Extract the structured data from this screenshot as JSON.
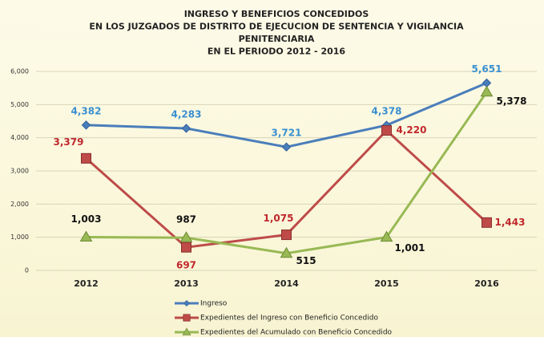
{
  "chart_data": {
    "type": "line",
    "title": [
      "INGRESO Y BENEFICIOS CONCEDIDOS",
      "EN LOS JUZGADOS DE DISTRITO DE EJECUCION DE SENTENCIA Y VIGILANCIA",
      "PENITENCIARIA",
      "EN EL PERIODO 2012 - 2016"
    ],
    "categories": [
      "2012",
      "2013",
      "2014",
      "2015",
      "2016"
    ],
    "series": [
      {
        "name": "Ingreso",
        "color": "#4a7ebb",
        "label_color": "#3a8fd0",
        "marker": "diamond",
        "values": [
          4382,
          4283,
          3721,
          4378,
          5651
        ],
        "value_labels": [
          "4,382",
          "4,283",
          "3,721",
          "4,378",
          "5,651"
        ]
      },
      {
        "name": "Expedientes del Ingreso con Beneficio Concedido",
        "color": "#be4b48",
        "label_color": "#c0282d",
        "marker": "square",
        "values": [
          3379,
          697,
          1075,
          4220,
          1443
        ],
        "value_labels": [
          "3,379",
          "697",
          "1,075",
          "4,220",
          "1,443"
        ]
      },
      {
        "name": "Expedientes del Acumulado con Beneficio Concedido",
        "color": "#98b954",
        "label_color": "#111111",
        "marker": "triangle",
        "values": [
          1003,
          987,
          515,
          1001,
          5378
        ],
        "value_labels": [
          "1,003",
          "987",
          "515",
          "1,001",
          "5,378"
        ]
      }
    ],
    "ylim": [
      0,
      6000
    ],
    "yticks": [
      0,
      {
        "value": 1000,
        "label": "1,000"
      },
      {
        "value": 2000,
        "label": "2,000"
      },
      {
        "value": 3000,
        "label": "3,000"
      },
      {
        "value": 4000,
        "label": "4,000"
      },
      {
        "value": 5000,
        "label": "5,000"
      },
      {
        "value": 6000,
        "label": "6,000"
      }
    ],
    "grid": true,
    "legend": "bottom"
  }
}
